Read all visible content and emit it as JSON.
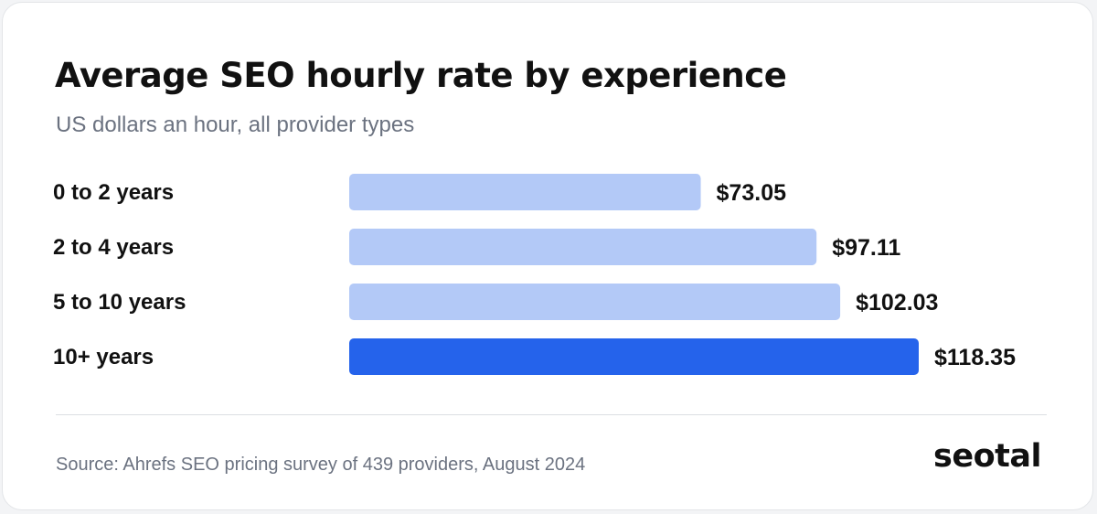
{
  "title": "Average SEO hourly rate by experience",
  "subtitle": "US dollars an hour, all provider types",
  "source": "Source: Ahrefs SEO pricing survey of 439 providers, August 2024",
  "brand": "seotal",
  "colors": {
    "bar_default": "#b3c9f7",
    "bar_highlight": "#2563eb",
    "text": "#111111",
    "muted": "#6b7280"
  },
  "chart_data": {
    "type": "bar",
    "orientation": "horizontal",
    "title": "Average SEO hourly rate by experience",
    "subtitle": "US dollars an hour, all provider types",
    "categories": [
      "0 to 2 years",
      "2 to 4 years",
      "5 to 10 years",
      "10+ years"
    ],
    "values": [
      73.05,
      97.11,
      102.03,
      118.35
    ],
    "value_labels": [
      "$73.05",
      "$97.11",
      "$102.03",
      "$118.35"
    ],
    "highlight_index": 3,
    "xlim": [
      0,
      118.35
    ],
    "grid": false,
    "legend": "none"
  }
}
